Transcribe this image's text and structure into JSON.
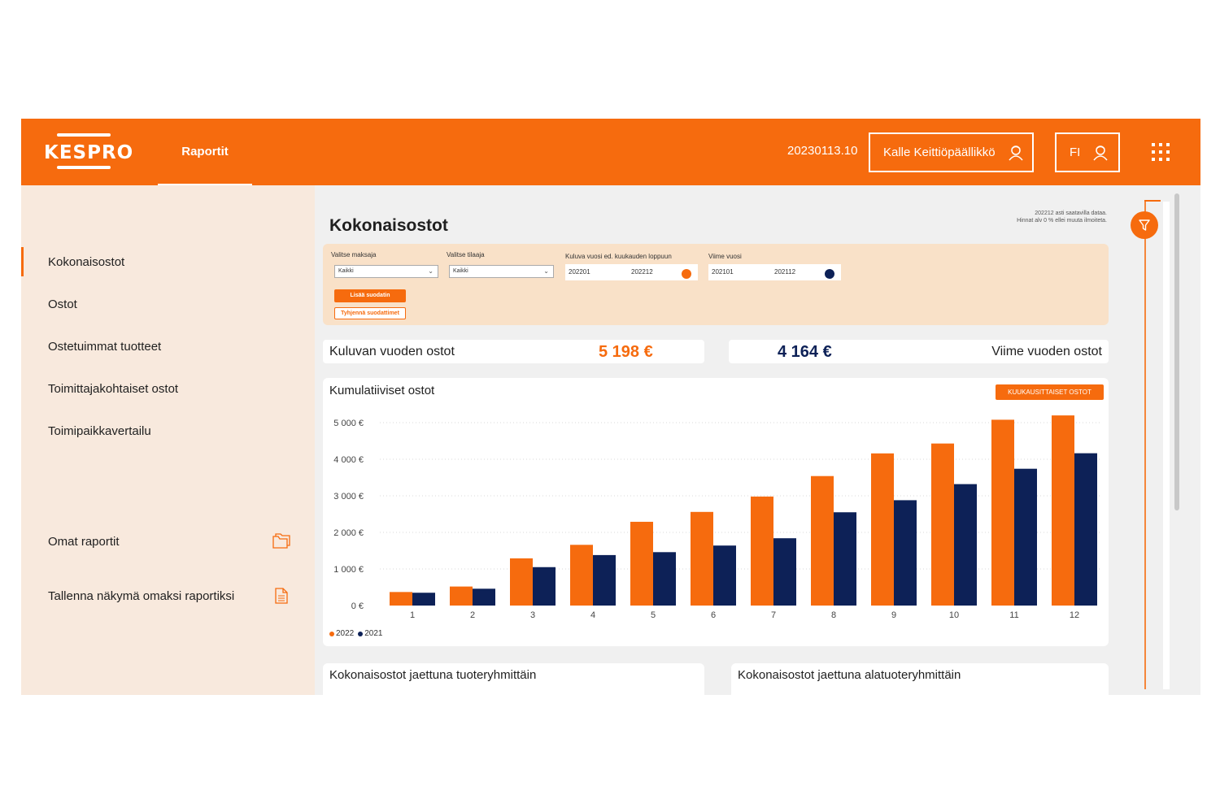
{
  "header": {
    "logo_text": "KESPRO",
    "nav_tab": "Raportit",
    "version": "20230113.10",
    "user_button": "Kalle Keittiöpäällikkö",
    "lang_button": "FI",
    "user_icon": "user-icon",
    "apps_icon": "apps-grid-icon"
  },
  "sidebar": {
    "items": [
      {
        "label": "Kokonaisostot",
        "active": true
      },
      {
        "label": "Ostot"
      },
      {
        "label": "Ostetuimmat tuotteet"
      },
      {
        "label": "Toimittajakohtaiset ostot"
      },
      {
        "label": "Toimipaikkavertailu"
      }
    ],
    "own_reports": "Omat raportit",
    "save_view": "Tallenna näkymä omaksi raportiksi",
    "own_reports_icon": "folder-icon",
    "save_view_icon": "document-icon"
  },
  "main": {
    "title": "Kokonaisostot",
    "note_line1": "202212 asti saatavilla dataa.",
    "note_line2": "Hinnat alv 0 % ellei muuta ilmoiteta.",
    "filters": {
      "payer_label": "Valitse maksaja",
      "payer_value": "Kaikki",
      "orderer_label": "Valitse tilaaja",
      "orderer_value": "Kaikki",
      "current_label": "Kuluva vuosi ed. kuukauden loppuun",
      "current_from": "202201",
      "current_to": "202212",
      "last_label": "Viime vuosi",
      "last_from": "202101",
      "last_to": "202112",
      "add_button": "Lisää suodatin",
      "clear_button": "Tyhjennä suodattimet"
    },
    "kpi": {
      "current_label": "Kuluvan vuoden ostot",
      "current_value": "5 198 €",
      "last_label": "Viime vuoden ostot",
      "last_value": "4 164 €"
    },
    "chart_title": "Kumulatiiviset ostot",
    "chart_button": "KUUKAUSITTAISET OSTOT",
    "bottom_left_title": "Kokonaisostot jaettuna tuoteryhmittäin",
    "bottom_right_title": "Kokonaisostot jaettuna alatuoteryhmittäin"
  },
  "colors": {
    "brand": "#f66b0e",
    "navy": "#0d2157",
    "sidebar_bg": "#f8e9dd",
    "filter_bg": "#f9e1c8"
  },
  "chart_data": {
    "type": "bar",
    "categories": [
      "1",
      "2",
      "3",
      "4",
      "5",
      "6",
      "7",
      "8",
      "9",
      "10",
      "11",
      "12"
    ],
    "series": [
      {
        "name": "2022",
        "color": "#f66b0e",
        "values": [
          370,
          520,
          1290,
          1660,
          2290,
          2560,
          2980,
          3540,
          4160,
          4430,
          5080,
          5198
        ]
      },
      {
        "name": "2021",
        "color": "#0d2157",
        "values": [
          350,
          460,
          1050,
          1380,
          1460,
          1640,
          1840,
          2550,
          2880,
          3320,
          3740,
          4164
        ]
      }
    ],
    "yticks": [
      "0 €",
      "1 000 €",
      "2 000 €",
      "3 000 €",
      "4 000 €",
      "5 000 €"
    ],
    "ylim": [
      0,
      5000
    ],
    "grid": true,
    "legend_position": "bottom-left"
  }
}
